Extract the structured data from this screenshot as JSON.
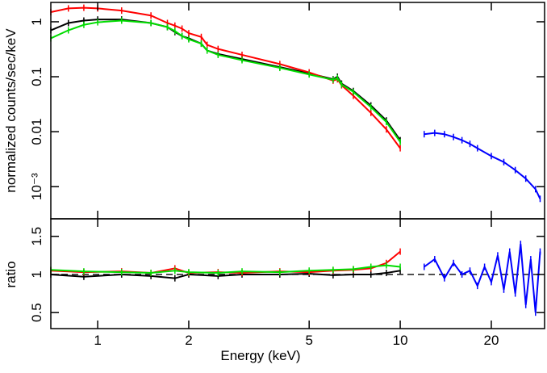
{
  "chart_data": [
    {
      "type": "line",
      "ylabel": "normalized counts/sec/keV",
      "xlog": true,
      "ylog": true,
      "xlim": [
        0.7,
        30
      ],
      "ylim": [
        0.00026,
        2.25
      ],
      "yticks": [
        1,
        0.1,
        0.01,
        {
          "value": 0.001,
          "label": "10⁻³"
        }
      ],
      "series": [
        {
          "color": "#000000",
          "x": [
            0.7,
            0.8,
            0.9,
            1.0,
            1.2,
            1.5,
            1.7,
            1.8,
            1.9,
            2.0,
            2.2,
            2.3,
            2.5,
            3,
            4,
            5,
            6,
            6.2,
            6.4,
            7,
            8,
            9,
            10
          ],
          "values": [
            0.7,
            0.95,
            1.05,
            1.1,
            1.1,
            0.95,
            0.8,
            0.65,
            0.55,
            0.5,
            0.4,
            0.3,
            0.26,
            0.21,
            0.15,
            0.115,
            0.09,
            0.1,
            0.075,
            0.055,
            0.03,
            0.016,
            0.007
          ]
        },
        {
          "color": "#ff0000",
          "x": [
            0.7,
            0.8,
            0.9,
            1.0,
            1.2,
            1.5,
            1.7,
            1.8,
            1.9,
            2.0,
            2.2,
            2.3,
            2.5,
            3,
            4,
            5,
            6,
            6.2,
            6.4,
            7,
            8,
            9,
            10
          ],
          "values": [
            1.5,
            1.75,
            1.8,
            1.75,
            1.6,
            1.3,
            0.95,
            0.85,
            0.75,
            0.62,
            0.53,
            0.38,
            0.32,
            0.25,
            0.17,
            0.12,
            0.085,
            0.09,
            0.07,
            0.045,
            0.022,
            0.011,
            0.005
          ]
        },
        {
          "color": "#00dd00",
          "x": [
            0.7,
            0.8,
            0.9,
            1.0,
            1.2,
            1.5,
            1.7,
            1.8,
            1.9,
            2.0,
            2.2,
            2.3,
            2.5,
            3,
            4,
            5,
            6,
            6.2,
            6.4,
            7,
            8,
            9,
            10
          ],
          "values": [
            0.5,
            0.7,
            0.88,
            0.98,
            1.05,
            0.95,
            0.8,
            0.68,
            0.55,
            0.48,
            0.4,
            0.3,
            0.25,
            0.2,
            0.145,
            0.11,
            0.088,
            0.095,
            0.072,
            0.053,
            0.028,
            0.015,
            0.0065
          ]
        },
        {
          "color": "#0000ff",
          "x": [
            12,
            13,
            14,
            15,
            16,
            17,
            18,
            20,
            22,
            24,
            26,
            28,
            29
          ],
          "values": [
            0.009,
            0.0095,
            0.009,
            0.008,
            0.007,
            0.006,
            0.005,
            0.0036,
            0.0028,
            0.002,
            0.0014,
            0.0009,
            0.0006
          ]
        }
      ]
    },
    {
      "type": "line",
      "xlabel": "Energy (keV)",
      "ylabel": "ratio",
      "xlog": true,
      "ylog": false,
      "xlim": [
        0.7,
        30
      ],
      "ylim": [
        0.29,
        1.73
      ],
      "xticks": [
        1,
        2,
        5,
        10,
        20
      ],
      "yticks": [
        0.5,
        1,
        1.5
      ],
      "reference_line": 1,
      "series": [
        {
          "color": "#000000",
          "x": [
            0.7,
            0.9,
            1.2,
            1.5,
            1.8,
            2.0,
            2.5,
            3,
            4,
            5,
            6,
            7,
            8,
            9,
            10
          ],
          "values": [
            1.0,
            0.97,
            1.0,
            0.98,
            0.95,
            1.0,
            0.98,
            1.0,
            1.0,
            1.01,
            0.99,
            1.0,
            1.0,
            1.02,
            1.05
          ]
        },
        {
          "color": "#ff0000",
          "x": [
            0.7,
            0.9,
            1.2,
            1.5,
            1.8,
            2.0,
            2.5,
            3,
            4,
            5,
            6,
            7,
            8,
            9,
            10
          ],
          "values": [
            1.05,
            1.03,
            1.04,
            1.02,
            1.08,
            1.02,
            1.03,
            1.02,
            1.04,
            1.03,
            1.05,
            1.06,
            1.08,
            1.15,
            1.3
          ]
        },
        {
          "color": "#00dd00",
          "x": [
            0.7,
            0.9,
            1.2,
            1.5,
            1.8,
            2.0,
            2.5,
            3,
            4,
            5,
            6,
            7,
            8,
            9,
            10
          ],
          "values": [
            1.06,
            1.04,
            1.03,
            1.02,
            1.05,
            1.03,
            1.02,
            1.04,
            1.03,
            1.05,
            1.06,
            1.07,
            1.1,
            1.12,
            1.1
          ]
        },
        {
          "color": "#0000ff",
          "x": [
            12,
            13,
            14,
            15,
            16,
            17,
            18,
            19,
            20,
            21,
            22,
            23,
            24,
            25,
            26,
            27,
            28,
            29
          ],
          "values": [
            1.1,
            1.2,
            0.95,
            1.15,
            1.0,
            1.05,
            0.85,
            1.1,
            0.9,
            1.25,
            0.8,
            1.3,
            0.75,
            1.4,
            0.6,
            1.2,
            0.5,
            1.3
          ]
        }
      ]
    }
  ]
}
